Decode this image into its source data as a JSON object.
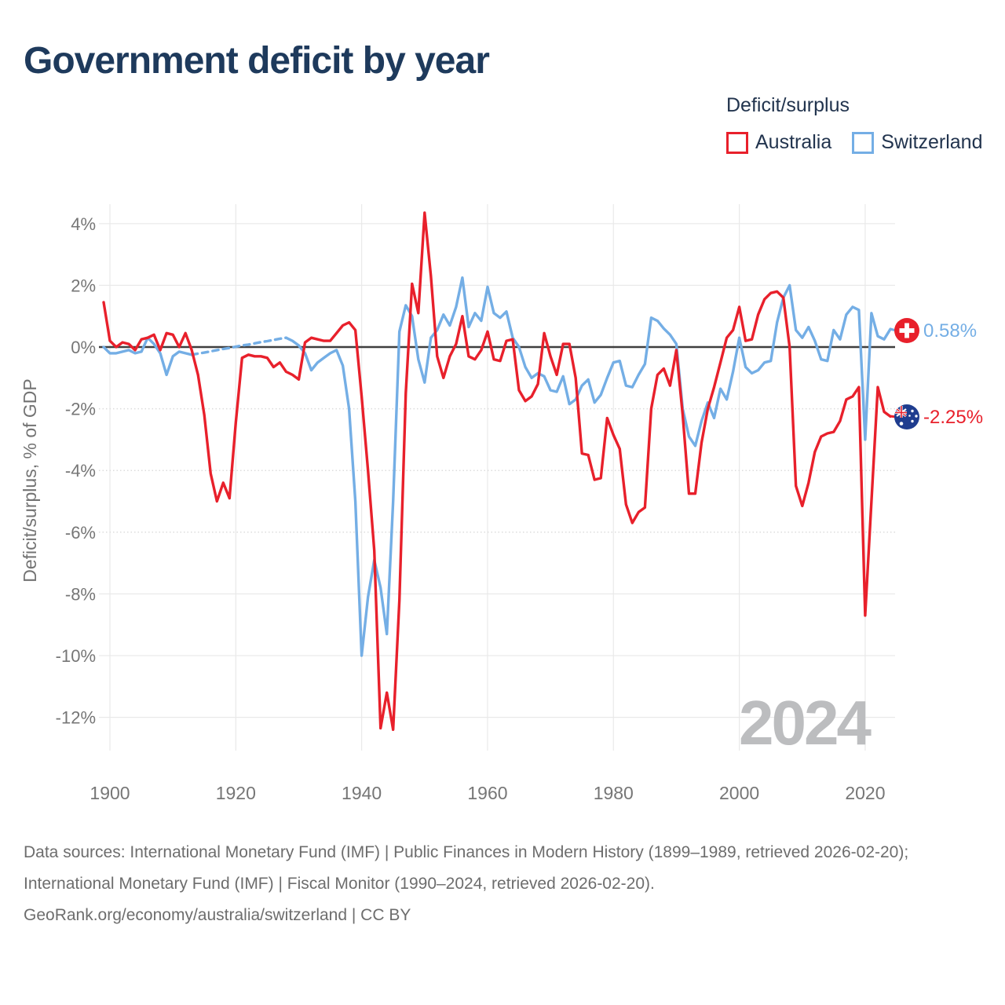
{
  "title": "Government deficit by year",
  "legend": {
    "title": "Deficit/surplus",
    "items": [
      {
        "label": "Australia",
        "color": "#e8202b"
      },
      {
        "label": "Switzerland",
        "color": "#74aee5"
      }
    ]
  },
  "watermark": "2024",
  "end_labels": {
    "switzerland": "0.58%",
    "australia": "-2.25%"
  },
  "footer": {
    "sources": "Data sources: International Monetary Fund (IMF) | Public Finances in Modern History (1899–1989, retrieved 2026-02-20); International Monetary Fund (IMF) | Fiscal Monitor (1990–2024, retrieved 2026-02-20).",
    "attribution": "GeoRank.org/economy/australia/switzerland | CC BY"
  },
  "colors": {
    "australia": "#e8202b",
    "switzerland": "#74aee5",
    "zero_line": "#3f3f3f",
    "grid": "#e9e9e9",
    "grid_dotted": "#dcdcdc",
    "title_text": "#1e3a5c",
    "axis_text": "#767676",
    "watermark": "#bcbdbf"
  },
  "chart_data": {
    "type": "line",
    "title": "Government deficit by year",
    "xlabel": "",
    "ylabel": "Deficit/surplus, % of GDP",
    "xlim": [
      1899,
      2024
    ],
    "ylim": [
      -13.2,
      4.8
    ],
    "grid": true,
    "legend_position": "top-right",
    "x_ticks": [
      1900,
      1920,
      1940,
      1960,
      1980,
      2000,
      2020
    ],
    "y_ticks": [
      4,
      2,
      0,
      -2,
      -4,
      -6,
      -8,
      -10,
      -12
    ],
    "years_start": 1899,
    "series": [
      {
        "name": "Australia",
        "color": "#e8202b",
        "end_label": "-2.25%",
        "values": [
          1.45,
          0.2,
          0.0,
          0.15,
          0.1,
          -0.1,
          0.25,
          0.3,
          0.4,
          -0.1,
          0.45,
          0.4,
          0.0,
          0.45,
          -0.1,
          -0.9,
          -2.2,
          -4.1,
          -5.0,
          -4.4,
          -4.9,
          -2.45,
          -0.35,
          -0.25,
          -0.3,
          -0.3,
          -0.35,
          -0.65,
          -0.5,
          -0.8,
          -0.9,
          -1.05,
          0.15,
          0.3,
          0.25,
          0.2,
          0.2,
          0.45,
          0.7,
          0.8,
          0.55,
          -1.6,
          -4.0,
          -6.6,
          -12.35,
          -11.2,
          -12.4,
          -8.2,
          -1.5,
          2.05,
          1.1,
          4.35,
          2.3,
          -0.3,
          -1.0,
          -0.3,
          0.1,
          1.0,
          -0.3,
          -0.4,
          -0.1,
          0.5,
          -0.4,
          -0.45,
          0.2,
          0.25,
          -1.4,
          -1.75,
          -1.6,
          -1.2,
          0.45,
          -0.3,
          -0.9,
          0.1,
          0.1,
          -1.0,
          -3.45,
          -3.5,
          -4.3,
          -4.25,
          -2.3,
          -2.85,
          -3.3,
          -5.1,
          -5.7,
          -5.35,
          -5.2,
          -2.0,
          -0.9,
          -0.7,
          -1.25,
          -0.1,
          -2.2,
          -4.75,
          -4.75,
          -3.1,
          -2.0,
          -1.3,
          -0.5,
          0.3,
          0.55,
          1.3,
          0.2,
          0.25,
          1.05,
          1.55,
          1.75,
          1.8,
          1.6,
          0.0,
          -4.5,
          -5.15,
          -4.4,
          -3.4,
          -2.9,
          -2.8,
          -2.75,
          -2.4,
          -1.7,
          -1.6,
          -1.3,
          -8.7,
          -5.0,
          -1.3,
          -2.1,
          -2.25
        ]
      },
      {
        "name": "Switzerland",
        "color": "#74aee5",
        "end_label": "0.58%",
        "dashed_segment": [
          1913,
          1928
        ],
        "values": [
          0.0,
          -0.2,
          -0.2,
          -0.15,
          -0.1,
          -0.2,
          -0.15,
          0.3,
          0.1,
          -0.2,
          -0.9,
          -0.3,
          -0.15,
          -0.2,
          -0.25,
          -0.21,
          -0.18,
          -0.14,
          -0.1,
          -0.06,
          -0.03,
          0.01,
          0.05,
          0.08,
          0.12,
          0.16,
          0.19,
          0.23,
          0.27,
          0.3,
          0.2,
          0.05,
          -0.2,
          -0.75,
          -0.5,
          -0.35,
          -0.2,
          -0.1,
          -0.6,
          -2.0,
          -5.0,
          -10.0,
          -8.1,
          -6.9,
          -7.8,
          -9.3,
          -5.0,
          0.5,
          1.35,
          1.0,
          -0.4,
          -1.15,
          0.3,
          0.55,
          1.05,
          0.7,
          1.3,
          2.25,
          0.65,
          1.1,
          0.85,
          1.95,
          1.1,
          0.95,
          1.15,
          0.3,
          0.0,
          -0.65,
          -1.0,
          -0.85,
          -0.95,
          -1.4,
          -1.45,
          -0.95,
          -1.85,
          -1.7,
          -1.25,
          -1.05,
          -1.8,
          -1.55,
          -1.0,
          -0.5,
          -0.45,
          -1.25,
          -1.3,
          -0.9,
          -0.55,
          0.95,
          0.85,
          0.6,
          0.4,
          0.1,
          -2.0,
          -2.9,
          -3.2,
          -2.4,
          -1.8,
          -2.3,
          -1.35,
          -1.7,
          -0.8,
          0.3,
          -0.65,
          -0.85,
          -0.75,
          -0.5,
          -0.45,
          0.8,
          1.6,
          2.0,
          0.55,
          0.3,
          0.65,
          0.2,
          -0.4,
          -0.45,
          0.55,
          0.25,
          1.05,
          1.3,
          1.2,
          -3.0,
          1.1,
          0.35,
          0.25,
          0.58
        ]
      }
    ]
  }
}
